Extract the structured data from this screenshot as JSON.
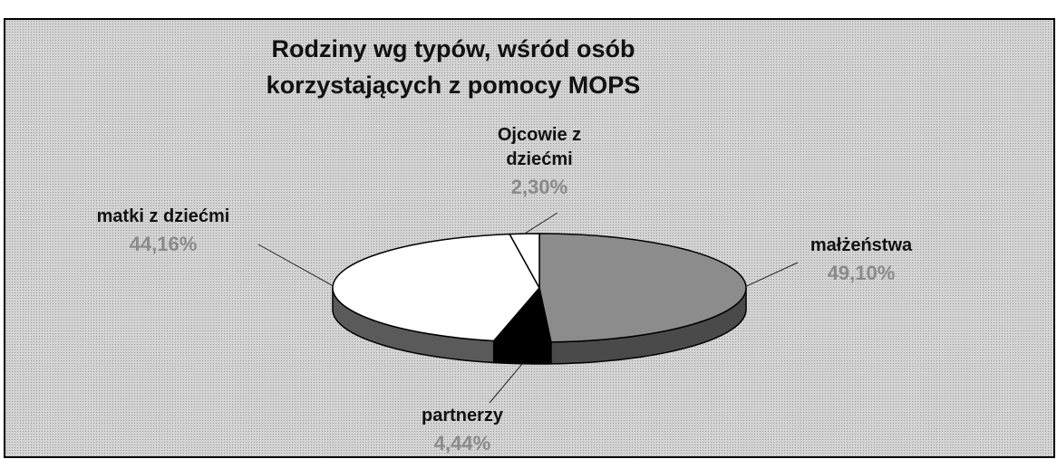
{
  "chart_data": {
    "type": "pie3d",
    "title": "Rodziny wg typów, wśród osób korzystających z pomocy MOPS",
    "categories": [
      "małżeństwa",
      "partnerzy",
      "matki z dziećmi",
      "Ojcowie z dziećmi"
    ],
    "values": [
      49.1,
      4.44,
      44.16,
      2.3
    ],
    "value_labels": [
      "49,10%",
      "4,44%",
      "44,16%",
      "2,30%"
    ],
    "colors": [
      "#8c8c8c",
      "#000000",
      "#ffffff",
      "#ffffff"
    ]
  }
}
